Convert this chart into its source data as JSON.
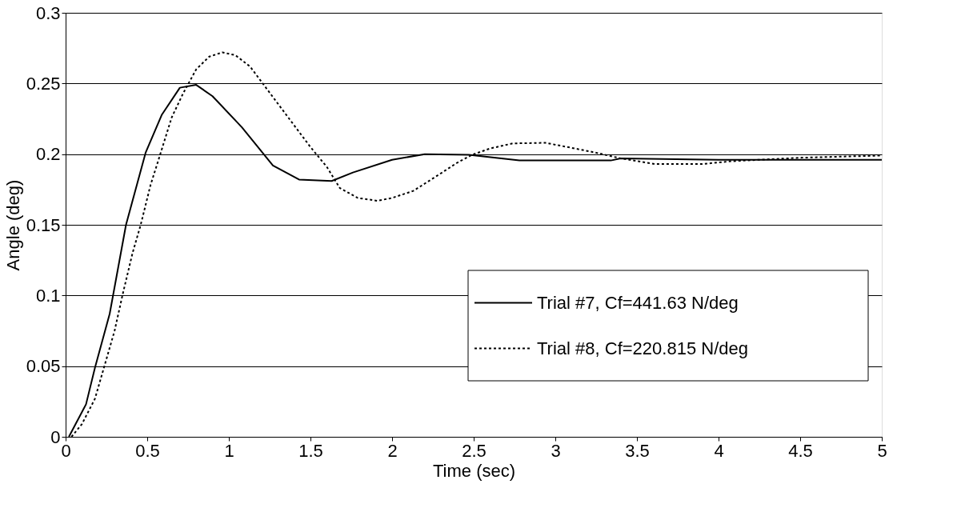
{
  "chart_data": {
    "type": "line",
    "xlabel": "Time (sec)",
    "ylabel": "Angle (deg)",
    "xlim": [
      0,
      5
    ],
    "xticks": [
      0,
      0.5,
      1,
      1.5,
      2,
      2.5,
      3,
      3.5,
      4,
      4.5,
      5
    ],
    "ylim": [
      0,
      0.3
    ],
    "yticks": [
      0,
      0.05,
      0.1,
      0.15,
      0.2,
      0.25,
      0.3
    ],
    "grid": "y",
    "legend": "right",
    "marker": "none",
    "series": [
      {
        "name": "Trial #7, Cf=441.63 N/deg",
        "color": "#000000",
        "line_style": "solid",
        "x": [
          0.02,
          0.125,
          0.18,
          0.27,
          0.37,
          0.49,
          0.59,
          0.7,
          0.8,
          0.9,
          1.08,
          1.27,
          1.43,
          1.63,
          1.76,
          2.0,
          2.2,
          2.47,
          2.78,
          3.34,
          3.4,
          4.0,
          4.5,
          5.0
        ],
        "values": [
          0,
          0.023,
          0.049,
          0.087,
          0.15,
          0.201,
          0.228,
          0.247,
          0.249,
          0.241,
          0.219,
          0.192,
          0.182,
          0.181,
          0.187,
          0.196,
          0.2,
          0.1995,
          0.1955,
          0.1955,
          0.197,
          0.196,
          0.196,
          0.196
        ]
      },
      {
        "name": "Trial #8, Cf=220.815 N/deg",
        "color": "#000000",
        "line_style": "dotted",
        "x": [
          0.036,
          0.1,
          0.18,
          0.24,
          0.3,
          0.35,
          0.41,
          0.46,
          0.52,
          0.58,
          0.65,
          0.72,
          0.8,
          0.88,
          0.96,
          1.04,
          1.13,
          1.24,
          1.37,
          1.5,
          1.6,
          1.68,
          1.79,
          1.91,
          2.0,
          2.13,
          2.28,
          2.4,
          2.49,
          2.6,
          2.74,
          2.94,
          3.12,
          3.25,
          3.4,
          3.61,
          3.9,
          4.08,
          4.51,
          5.0
        ],
        "values": [
          0,
          0.009,
          0.027,
          0.051,
          0.075,
          0.101,
          0.13,
          0.15,
          0.178,
          0.2,
          0.226,
          0.243,
          0.26,
          0.269,
          0.272,
          0.27,
          0.262,
          0.245,
          0.225,
          0.205,
          0.191,
          0.176,
          0.169,
          0.167,
          0.169,
          0.174,
          0.185,
          0.194,
          0.1995,
          0.204,
          0.2076,
          0.208,
          0.204,
          0.201,
          0.197,
          0.193,
          0.193,
          0.195,
          0.1975,
          0.199
        ]
      }
    ]
  }
}
